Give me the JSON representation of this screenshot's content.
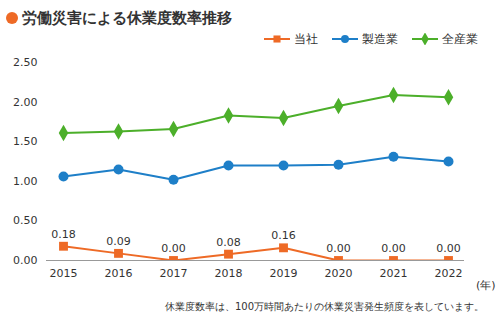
{
  "chart_data": {
    "type": "line",
    "title": "労働災害による休業度数率推移",
    "categories": [
      "2015",
      "2016",
      "2017",
      "2018",
      "2019",
      "2020",
      "2021",
      "2022"
    ],
    "xlabel": "(年)",
    "series": [
      {
        "name": "当社",
        "color": "#ee6a26",
        "marker": "square",
        "data_labels": true,
        "values": [
          0.18,
          0.09,
          0.0,
          0.08,
          0.16,
          0.0,
          0.0,
          0.0
        ],
        "value_labels": [
          "0.18",
          "0.09",
          "0.00",
          "0.08",
          "0.16",
          "0.00",
          "0.00",
          "0.00"
        ]
      },
      {
        "name": "製造業",
        "color": "#1e7fc8",
        "marker": "circle",
        "values": [
          1.06,
          1.15,
          1.02,
          1.2,
          1.2,
          1.21,
          1.31,
          1.25
        ]
      },
      {
        "name": "全産業",
        "color": "#4caf2a",
        "marker": "diamond",
        "values": [
          1.61,
          1.63,
          1.66,
          1.83,
          1.8,
          1.95,
          2.09,
          2.06
        ]
      }
    ],
    "ylim": [
      0,
      2.5
    ],
    "yticks": [
      {
        "value": 0,
        "label": "0.00"
      },
      {
        "value": 0.5,
        "label": "0.50"
      },
      {
        "value": 1,
        "label": "1.00"
      },
      {
        "value": 1.5,
        "label": "1.50"
      },
      {
        "value": 2,
        "label": "2.00"
      },
      {
        "value": 2.5,
        "label": "2.50"
      }
    ],
    "grid": false,
    "legend": "top-right",
    "caption": "休業度数率は、100万時間あたりの休業災害発生頻度を表しています。"
  }
}
